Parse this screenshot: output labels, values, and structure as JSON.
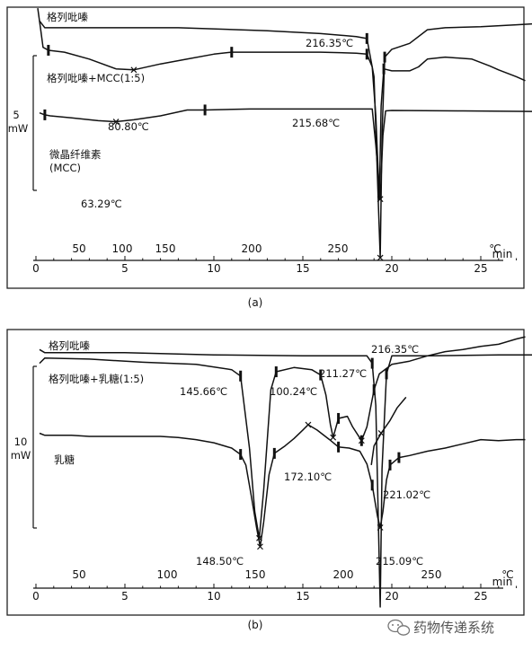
{
  "chart_data": [
    {
      "panel_label": "(a)",
      "type": "line",
      "x_time": {
        "unit_label": "min",
        "ticks": [
          "0",
          "5",
          "10",
          "15",
          "20",
          "25"
        ],
        "range": [
          0,
          27.5
        ]
      },
      "x_temp": {
        "unit_label": "℃",
        "ticks": [
          "50",
          "100",
          "150",
          "200",
          "250"
        ]
      },
      "scale_bar": {
        "value": "5",
        "unit": "mW"
      },
      "series": [
        {
          "name": "格列吡嗪",
          "points": [
            [
              0.2,
              0.3
            ],
            [
              0.5,
              1.0
            ],
            [
              3,
              1.0
            ],
            [
              8,
              1.0
            ],
            [
              13,
              1.3
            ],
            [
              16,
              1.6
            ],
            [
              18,
              1.9
            ],
            [
              18.6,
              2.1
            ],
            [
              19.0,
              6.0
            ],
            [
              19.35,
              24.5
            ],
            [
              19.45,
              12.0
            ],
            [
              19.6,
              4.0
            ],
            [
              20.0,
              3.2
            ],
            [
              21.0,
              2.6
            ],
            [
              22.0,
              1.2
            ],
            [
              23.0,
              1.0
            ],
            [
              25.0,
              0.9
            ],
            [
              27.0,
              0.7
            ],
            [
              28.0,
              0.6
            ]
          ]
        },
        {
          "name": "格列吡嗪+MCC(1:5)",
          "points": [
            [
              0.1,
              -1.0
            ],
            [
              0.25,
              1.0
            ],
            [
              0.4,
              3.0
            ],
            [
              0.7,
              3.3
            ],
            [
              1.6,
              3.5
            ],
            [
              3,
              4.2
            ],
            [
              4.5,
              5.2
            ],
            [
              5.5,
              5.3
            ],
            [
              7,
              4.7
            ],
            [
              8.5,
              4.2
            ],
            [
              10,
              3.7
            ],
            [
              11,
              3.5
            ],
            [
              13,
              3.5
            ],
            [
              16,
              3.5
            ],
            [
              18,
              3.6
            ],
            [
              18.6,
              3.7
            ],
            [
              18.9,
              5.0
            ],
            [
              19.1,
              10.0
            ],
            [
              19.3,
              18.5
            ],
            [
              19.4,
              9.0
            ],
            [
              19.55,
              5.2
            ],
            [
              20.0,
              5.4
            ],
            [
              21.0,
              5.4
            ],
            [
              21.5,
              5.0
            ],
            [
              22.0,
              4.2
            ],
            [
              23.0,
              4.0
            ],
            [
              24.5,
              4.2
            ],
            [
              25.5,
              4.9
            ],
            [
              26.0,
              5.3
            ],
            [
              27.0,
              6.0
            ],
            [
              27.5,
              6.4
            ]
          ]
        },
        {
          "name": "微晶纤维素",
          "points": [
            [
              0.2,
              9.7
            ],
            [
              0.5,
              9.9
            ],
            [
              0.8,
              10.0
            ],
            [
              2,
              10.2
            ],
            [
              3.5,
              10.5
            ],
            [
              4.5,
              10.6
            ],
            [
              5.5,
              10.4
            ],
            [
              7,
              10.0
            ],
            [
              8.5,
              9.4
            ],
            [
              9.5,
              9.4
            ],
            [
              12,
              9.3
            ],
            [
              15,
              9.3
            ],
            [
              18,
              9.3
            ],
            [
              18.9,
              9.3
            ],
            [
              19.1,
              13.0
            ],
            [
              19.35,
              18.5
            ],
            [
              19.5,
              12.0
            ],
            [
              19.65,
              9.5
            ],
            [
              20,
              9.45
            ],
            [
              24,
              9.5
            ],
            [
              28,
              9.55
            ]
          ]
        }
      ],
      "annotations": [
        {
          "text": "216.35℃",
          "x": 19.35,
          "y": 2.5
        },
        {
          "text": "80.80℃",
          "x": 5.5,
          "y": 5.3
        },
        {
          "text": "215.68℃",
          "x": 19.3,
          "y": 3.8
        },
        {
          "text": "63.29℃",
          "x": 4.5,
          "y": 10.6
        }
      ],
      "series_text": {
        "mcc_sublabel": "(MCC)"
      }
    },
    {
      "panel_label": "(b)",
      "type": "line",
      "x_time": {
        "unit_label": "min",
        "ticks": [
          "0",
          "5",
          "10",
          "15",
          "20",
          "25"
        ],
        "range": [
          0,
          27.5
        ]
      },
      "x_temp": {
        "unit_label": "℃",
        "ticks": [
          "50",
          "100",
          "150",
          "200",
          "250"
        ]
      },
      "scale_bar": {
        "value": "10",
        "unit": "mW"
      },
      "series": [
        {
          "name": "格列吡嗪",
          "points": [
            [
              0.2,
              0.7
            ],
            [
              0.5,
              1.0
            ],
            [
              5,
              1.0
            ],
            [
              10,
              1.2
            ],
            [
              15,
              1.3
            ],
            [
              18.6,
              1.3
            ],
            [
              18.9,
              2.0
            ],
            [
              19.1,
              6.0
            ],
            [
              19.35,
              25.0
            ],
            [
              19.45,
              12.0
            ],
            [
              19.7,
              3.0
            ],
            [
              20.0,
              1.3
            ],
            [
              22,
              1.3
            ],
            [
              26,
              1.2
            ],
            [
              28,
              1.2
            ]
          ]
        },
        {
          "name": "格列吡嗪+乳糖(1:5)",
          "points": [
            [
              0.2,
              2.0
            ],
            [
              0.5,
              1.5
            ],
            [
              3,
              1.6
            ],
            [
              6,
              1.9
            ],
            [
              9,
              2.1
            ],
            [
              11,
              2.6
            ],
            [
              11.5,
              3.2
            ],
            [
              12,
              10.0
            ],
            [
              12.3,
              16.0
            ],
            [
              12.55,
              18.5
            ],
            [
              12.8,
              14.0
            ],
            [
              13.2,
              4.5
            ],
            [
              13.5,
              2.8
            ],
            [
              14.5,
              2.4
            ],
            [
              15.5,
              2.6
            ],
            [
              16.0,
              3.1
            ],
            [
              16.3,
              5.0
            ],
            [
              16.55,
              7.8
            ],
            [
              16.7,
              9.0
            ],
            [
              17.0,
              7.2
            ],
            [
              17.5,
              7.0
            ],
            [
              17.8,
              8.0
            ],
            [
              18.3,
              9.3
            ],
            [
              18.6,
              8.0
            ],
            [
              19.0,
              4.5
            ],
            [
              19.3,
              3.0
            ],
            [
              20,
              2.1
            ],
            [
              21,
              1.8
            ],
            [
              22,
              1.3
            ],
            [
              23,
              0.9
            ],
            [
              24,
              0.7
            ],
            [
              25,
              0.4
            ],
            [
              26,
              0.2
            ],
            [
              27,
              -0.3
            ],
            [
              27.5,
              -0.5
            ]
          ]
        },
        {
          "name": "乳糖",
          "points": [
            [
              0.2,
              8.6
            ],
            [
              0.5,
              8.8
            ],
            [
              2,
              8.8
            ],
            [
              3,
              8.9
            ],
            [
              5,
              8.9
            ],
            [
              7,
              8.9
            ],
            [
              8,
              9.0
            ],
            [
              9,
              9.2
            ],
            [
              10,
              9.5
            ],
            [
              11,
              10.0
            ],
            [
              11.5,
              10.6
            ],
            [
              11.8,
              11.6
            ],
            [
              12.1,
              14.5
            ],
            [
              12.4,
              17.5
            ],
            [
              12.6,
              19.3
            ],
            [
              12.8,
              17.0
            ],
            [
              13.1,
              12.5
            ],
            [
              13.4,
              10.5
            ],
            [
              14,
              9.8
            ],
            [
              14.5,
              9.1
            ],
            [
              15.0,
              8.3
            ],
            [
              15.3,
              7.8
            ],
            [
              15.8,
              8.3
            ],
            [
              16.5,
              9.2
            ],
            [
              17.0,
              9.9
            ],
            [
              17.6,
              10.0
            ],
            [
              18.2,
              10.3
            ],
            [
              18.6,
              11.5
            ],
            [
              18.9,
              13.5
            ],
            [
              19.2,
              16.5
            ],
            [
              19.35,
              17.5
            ],
            [
              19.5,
              16.0
            ],
            [
              19.7,
              13.0
            ],
            [
              19.9,
              11.6
            ],
            [
              20.4,
              10.9
            ],
            [
              21,
              10.7
            ],
            [
              22,
              10.3
            ],
            [
              23,
              10.0
            ],
            [
              24,
              9.6
            ],
            [
              25,
              9.2
            ],
            [
              26,
              9.3
            ],
            [
              27,
              9.2
            ],
            [
              27.5,
              9.2
            ]
          ]
        },
        {
          "name": "",
          "points": [
            [
              18.85,
              11.6
            ],
            [
              19.0,
              9.8
            ],
            [
              19.4,
              8.6
            ],
            [
              19.9,
              7.4
            ],
            [
              20.3,
              6.2
            ],
            [
              20.8,
              5.2
            ]
          ]
        }
      ],
      "annotations": [
        {
          "text": "216.35℃",
          "x": 19.35,
          "y": 1.3
        },
        {
          "text": "145.66℃",
          "x": 12.0,
          "y": 2.6
        },
        {
          "text": "100.24℃",
          "x": 16.3,
          "y": 3.1
        },
        {
          "text": "211.27℃",
          "x": 18.3,
          "y": 9.3
        },
        {
          "text": "172.10℃",
          "x": 15.3,
          "y": 7.8
        },
        {
          "text": "221.02℃",
          "x": 19.7,
          "y": 11.4
        },
        {
          "text": "148.50℃",
          "x": 12.6,
          "y": 19.3
        },
        {
          "text": "215.09℃",
          "x": 19.35,
          "y": 17.5
        }
      ]
    }
  ],
  "watermark": {
    "text": "药物传递系统",
    "icon": "wechat-icon"
  }
}
